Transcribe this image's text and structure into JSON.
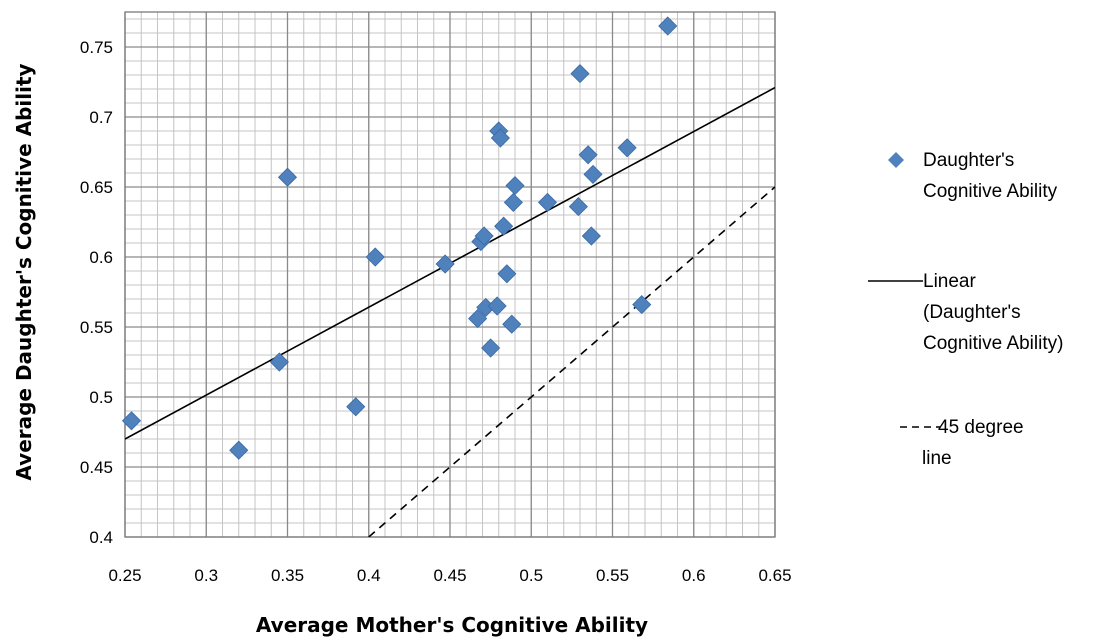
{
  "chart_data": {
    "type": "scatter",
    "xlabel": "Average Mother's Cognitive Ability",
    "ylabel": "Average Daughter's Cognitive Ability",
    "xlim": [
      0.25,
      0.65
    ],
    "ylim": [
      0.4,
      0.775
    ],
    "x_ticks": [
      "0.25",
      "0.3",
      "0.35",
      "0.4",
      "0.45",
      "0.5",
      "0.55",
      "0.6",
      "0.65"
    ],
    "y_ticks": [
      "0.4",
      "0.45",
      "0.5",
      "0.55",
      "0.6",
      "0.65",
      "0.7",
      "0.75"
    ],
    "grid": true,
    "minor_grid": true,
    "series": [
      {
        "name": "Daughter's Cognitive Ability",
        "kind": "markers",
        "marker": "diamond",
        "color": "#4F81BD",
        "points": [
          [
            0.254,
            0.483
          ],
          [
            0.32,
            0.462
          ],
          [
            0.345,
            0.525
          ],
          [
            0.35,
            0.657
          ],
          [
            0.392,
            0.493
          ],
          [
            0.404,
            0.6
          ],
          [
            0.447,
            0.595
          ],
          [
            0.467,
            0.556
          ],
          [
            0.469,
            0.611
          ],
          [
            0.471,
            0.615
          ],
          [
            0.472,
            0.564
          ],
          [
            0.475,
            0.535
          ],
          [
            0.479,
            0.565
          ],
          [
            0.48,
            0.69
          ],
          [
            0.481,
            0.685
          ],
          [
            0.483,
            0.622
          ],
          [
            0.485,
            0.588
          ],
          [
            0.488,
            0.552
          ],
          [
            0.489,
            0.639
          ],
          [
            0.49,
            0.651
          ],
          [
            0.51,
            0.639
          ],
          [
            0.529,
            0.636
          ],
          [
            0.53,
            0.731
          ],
          [
            0.535,
            0.673
          ],
          [
            0.537,
            0.615
          ],
          [
            0.538,
            0.659
          ],
          [
            0.559,
            0.678
          ],
          [
            0.568,
            0.566
          ],
          [
            0.584,
            0.765
          ]
        ]
      },
      {
        "name": "Linear (Daughter's Cognitive Ability)",
        "kind": "line",
        "style": "solid",
        "color": "#000000",
        "points": [
          [
            0.25,
            0.47
          ],
          [
            0.65,
            0.721
          ]
        ]
      },
      {
        "name": "45 degree line",
        "kind": "line",
        "style": "dashed",
        "color": "#000000",
        "points": [
          [
            0.4,
            0.4
          ],
          [
            0.65,
            0.65
          ]
        ]
      }
    ],
    "legend": {
      "position": "right",
      "entries": [
        {
          "lines": [
            "Daughter's",
            "Cognitive Ability"
          ]
        },
        {
          "lines": [
            "Linear",
            "(Daughter's",
            "Cognitive Ability)"
          ]
        },
        {
          "lines": [
            "45 degree",
            "line"
          ]
        }
      ]
    }
  }
}
